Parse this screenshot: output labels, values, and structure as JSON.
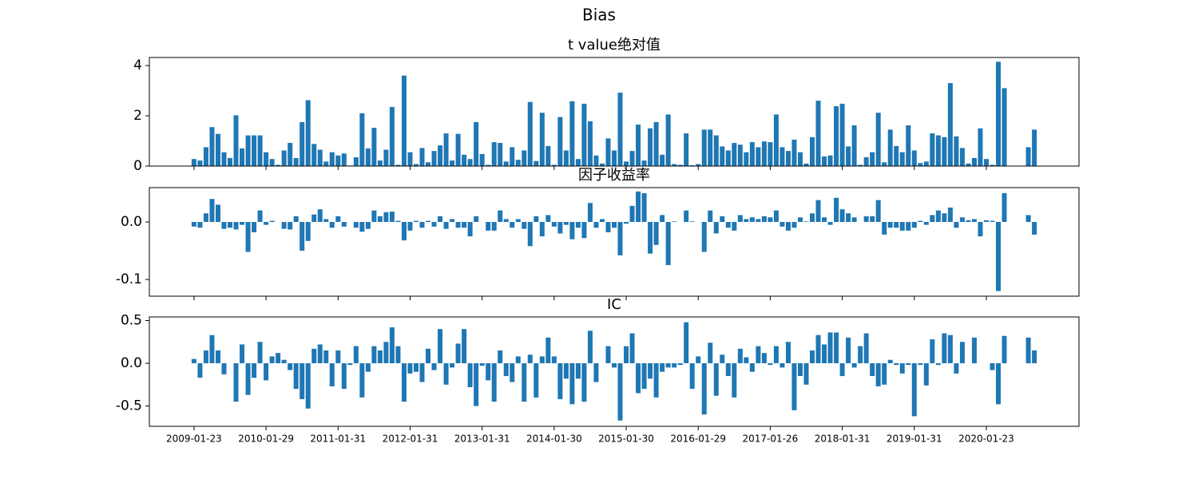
{
  "title": "Bias",
  "chart_data": [
    {
      "type": "bar",
      "title": "t value绝对值",
      "color": "#1f77b4",
      "ylim": [
        0,
        4.32
      ],
      "yticks": [
        0,
        2,
        4
      ],
      "values": [
        0.28,
        0.22,
        0.75,
        1.55,
        1.28,
        0.55,
        0.32,
        2.02,
        0.7,
        1.22,
        1.22,
        1.22,
        0.55,
        0.28,
        0.05,
        0.62,
        0.92,
        0.32,
        1.75,
        2.62,
        0.88,
        0.65,
        0.18,
        0.55,
        0.42,
        0.5,
        0.02,
        0.35,
        2.1,
        0.7,
        1.52,
        0.22,
        0.65,
        2.35,
        0.05,
        3.6,
        0.55,
        0.08,
        0.72,
        0.15,
        0.6,
        0.82,
        1.3,
        0.22,
        1.28,
        0.45,
        0.28,
        1.75,
        0.48,
        0.05,
        0.95,
        0.92,
        0.18,
        0.75,
        0.25,
        0.62,
        2.55,
        0.2,
        2.12,
        0.8,
        0.05,
        1.95,
        0.62,
        2.58,
        0.28,
        2.48,
        1.78,
        0.42,
        0.1,
        1.1,
        0.62,
        2.92,
        0.18,
        0.6,
        1.65,
        0.22,
        1.5,
        1.75,
        0.45,
        2.05,
        0.08,
        0.05,
        1.3,
        0.03,
        0.08,
        1.45,
        1.45,
        1.22,
        0.78,
        0.62,
        0.92,
        0.85,
        0.55,
        0.95,
        0.75,
        0.98,
        0.95,
        2.05,
        0.75,
        0.6,
        1.05,
        0.55,
        0.1,
        1.15,
        2.6,
        0.38,
        0.42,
        2.38,
        2.48,
        0.78,
        1.62,
        0.05,
        0.35,
        0.55,
        2.12,
        0.15,
        1.45,
        0.8,
        0.55,
        1.62,
        0.62,
        0.12,
        0.18,
        1.3,
        1.22,
        1.15,
        3.3,
        1.18,
        0.72,
        0.1,
        0.32,
        1.5,
        0.28,
        0.05,
        4.15,
        3.1,
        null,
        null,
        null,
        0.75,
        1.45
      ]
    },
    {
      "type": "bar",
      "title": "因子收益率",
      "color": "#1f77b4",
      "ylim": [
        -0.129,
        0.0597
      ],
      "yticks": [
        -0.1,
        {
          "value": 0,
          "label": "0.0"
        }
      ],
      "values": [
        -0.008,
        -0.01,
        0.015,
        0.04,
        0.03,
        -0.012,
        -0.01,
        -0.013,
        -0.005,
        -0.052,
        -0.018,
        0.02,
        -0.005,
        0.002,
        0,
        -0.012,
        -0.013,
        0.01,
        -0.05,
        -0.033,
        0.013,
        0.022,
        0.005,
        -0.01,
        0.01,
        -0.008,
        0,
        -0.01,
        -0.017,
        -0.012,
        0.02,
        0.01,
        0.017,
        0.018,
        0.002,
        -0.032,
        -0.015,
        0.002,
        -0.01,
        0.002,
        -0.008,
        0.01,
        -0.012,
        0.005,
        -0.01,
        -0.01,
        -0.025,
        0.01,
        0,
        -0.015,
        -0.015,
        0.02,
        0.005,
        -0.01,
        0.005,
        -0.012,
        -0.042,
        0.01,
        -0.025,
        0.012,
        -0.008,
        -0.02,
        -0.005,
        -0.03,
        -0.01,
        -0.028,
        0.033,
        -0.01,
        0.005,
        -0.018,
        -0.01,
        -0.058,
        -0.003,
        0.028,
        0.053,
        0.05,
        -0.055,
        -0.04,
        0.012,
        -0.075,
        0.001,
        0,
        0.02,
        0.001,
        0,
        -0.052,
        0.02,
        -0.02,
        0.01,
        -0.01,
        -0.015,
        0.012,
        0.005,
        0.008,
        0.005,
        0.01,
        0.008,
        0.02,
        -0.008,
        -0.015,
        -0.01,
        0.008,
        0.001,
        0.015,
        0.038,
        0.008,
        -0.005,
        0.042,
        0.022,
        0.015,
        0.008,
        0,
        0.01,
        0.01,
        0.038,
        -0.022,
        -0.01,
        -0.01,
        -0.015,
        -0.015,
        -0.01,
        0.002,
        -0.005,
        0.012,
        0.02,
        0.015,
        0.025,
        -0.01,
        0.008,
        0.003,
        0.005,
        -0.025,
        0.003,
        0.002,
        -0.12,
        0.05,
        null,
        null,
        null,
        0.012,
        -0.022
      ]
    },
    {
      "type": "bar",
      "title": "IC",
      "color": "#1f77b4",
      "ylim": [
        -0.738,
        0.542
      ],
      "yticks": [
        -0.5,
        {
          "value": 0,
          "label": "0.0"
        },
        0.5
      ],
      "categories": [
        "2009-01-23",
        null,
        null,
        null,
        null,
        null,
        null,
        null,
        null,
        null,
        null,
        null,
        "2010-01-29",
        null,
        null,
        null,
        null,
        null,
        null,
        null,
        null,
        null,
        null,
        null,
        "2011-01-31",
        null,
        null,
        null,
        null,
        null,
        null,
        null,
        null,
        null,
        null,
        null,
        "2012-01-31",
        null,
        null,
        null,
        null,
        null,
        null,
        null,
        null,
        null,
        null,
        null,
        "2013-01-31",
        null,
        null,
        null,
        null,
        null,
        null,
        null,
        null,
        null,
        null,
        null,
        "2014-01-30",
        null,
        null,
        null,
        null,
        null,
        null,
        null,
        null,
        null,
        null,
        null,
        "2015-01-30",
        null,
        null,
        null,
        null,
        null,
        null,
        null,
        null,
        null,
        null,
        null,
        "2016-01-29",
        null,
        null,
        null,
        null,
        null,
        null,
        null,
        null,
        null,
        null,
        null,
        "2017-01-26",
        null,
        null,
        null,
        null,
        null,
        null,
        null,
        null,
        null,
        null,
        null,
        "2018-01-31",
        null,
        null,
        null,
        null,
        null,
        null,
        null,
        null,
        null,
        null,
        null,
        "2019-01-31",
        null,
        null,
        null,
        null,
        null,
        null,
        null,
        null,
        null,
        null,
        null,
        "2020-01-23",
        null,
        null,
        null,
        null,
        null,
        null,
        null,
        null
      ],
      "values": [
        0.05,
        -0.17,
        0.15,
        0.33,
        0.15,
        -0.13,
        0,
        -0.45,
        0.22,
        -0.37,
        -0.17,
        0.25,
        -0.2,
        0.08,
        0.12,
        0.04,
        -0.08,
        -0.3,
        -0.42,
        -0.53,
        0.17,
        0.22,
        0.15,
        -0.27,
        0.15,
        -0.3,
        -0.02,
        0.2,
        -0.4,
        -0.1,
        0.2,
        0.15,
        0.25,
        0.42,
        0.2,
        -0.45,
        -0.12,
        -0.1,
        -0.22,
        0.17,
        -0.08,
        0.4,
        -0.25,
        -0.05,
        0.23,
        0.4,
        -0.28,
        -0.5,
        -0.03,
        -0.2,
        -0.45,
        0.15,
        -0.15,
        -0.22,
        0.08,
        -0.45,
        0.1,
        -0.4,
        0.08,
        0.3,
        0.08,
        -0.42,
        -0.18,
        -0.48,
        -0.18,
        -0.45,
        0.38,
        -0.22,
        0,
        0.2,
        -0.05,
        -0.67,
        0.2,
        0.35,
        -0.35,
        -0.3,
        -0.18,
        -0.4,
        -0.1,
        -0.05,
        -0.05,
        -0.02,
        0.48,
        -0.3,
        0.08,
        -0.6,
        0.24,
        -0.38,
        0.1,
        -0.15,
        -0.4,
        0.17,
        0.07,
        -0.1,
        0.2,
        0.12,
        -0.02,
        0.2,
        -0.05,
        0.25,
        -0.55,
        -0.15,
        -0.25,
        0.15,
        0.33,
        0.22,
        0.36,
        0.36,
        -0.15,
        0.3,
        -0.05,
        0.2,
        0.35,
        -0.15,
        -0.27,
        -0.25,
        0.04,
        -0.02,
        -0.12,
        -0.02,
        -0.62,
        -0.02,
        -0.26,
        0.28,
        -0.02,
        0.35,
        0.33,
        -0.12,
        0.25,
        0,
        0.3,
        0,
        0,
        -0.08,
        -0.48,
        0.32,
        null,
        null,
        null,
        0.3,
        0.15
      ]
    }
  ]
}
